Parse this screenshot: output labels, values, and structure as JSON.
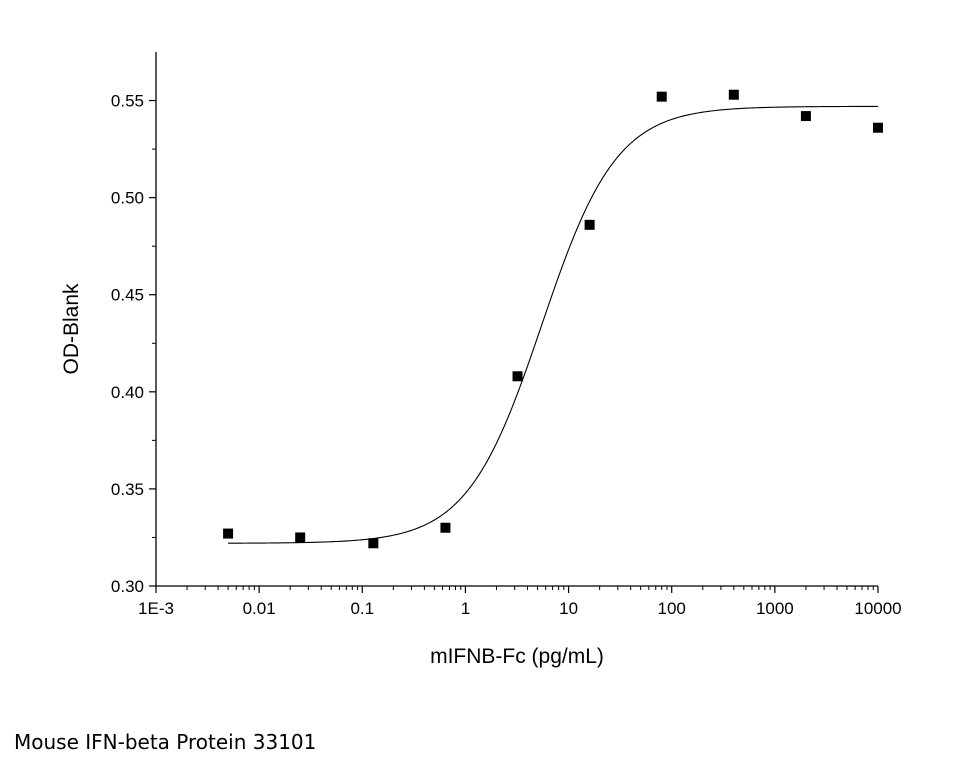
{
  "chart_data": {
    "type": "scatter",
    "x_scale": "log",
    "xlabel": "mIFNB-Fc (pg/mL)",
    "ylabel": "OD-Blank",
    "xlim": [
      0.001,
      10000
    ],
    "ylim": [
      0.3,
      0.575
    ],
    "x_ticks": [
      0.001,
      0.01,
      0.1,
      1,
      10,
      100,
      1000,
      10000
    ],
    "x_tick_labels": [
      "1E-3",
      "0.01",
      "0.1",
      "1",
      "10",
      "100",
      "1000",
      "10000"
    ],
    "y_ticks": [
      0.3,
      0.35,
      0.4,
      0.45,
      0.5,
      0.55
    ],
    "y_tick_labels": [
      "0.30",
      "0.35",
      "0.40",
      "0.45",
      "0.50",
      "0.55"
    ],
    "grid": false,
    "points": {
      "x": [
        0.005,
        0.025,
        0.128,
        0.64,
        3.2,
        16,
        80,
        400,
        2000,
        10000
      ],
      "y": [
        0.327,
        0.325,
        0.322,
        0.33,
        0.408,
        0.486,
        0.552,
        0.553,
        0.542,
        0.536
      ]
    },
    "fit_curve": {
      "model": "four-parameter logistic",
      "bottom": 0.322,
      "top": 0.547,
      "ec50": 5.5,
      "hill": 1.2,
      "x_range": [
        0.005,
        10000
      ]
    }
  },
  "caption": "Mouse IFN-beta Protein 33101"
}
